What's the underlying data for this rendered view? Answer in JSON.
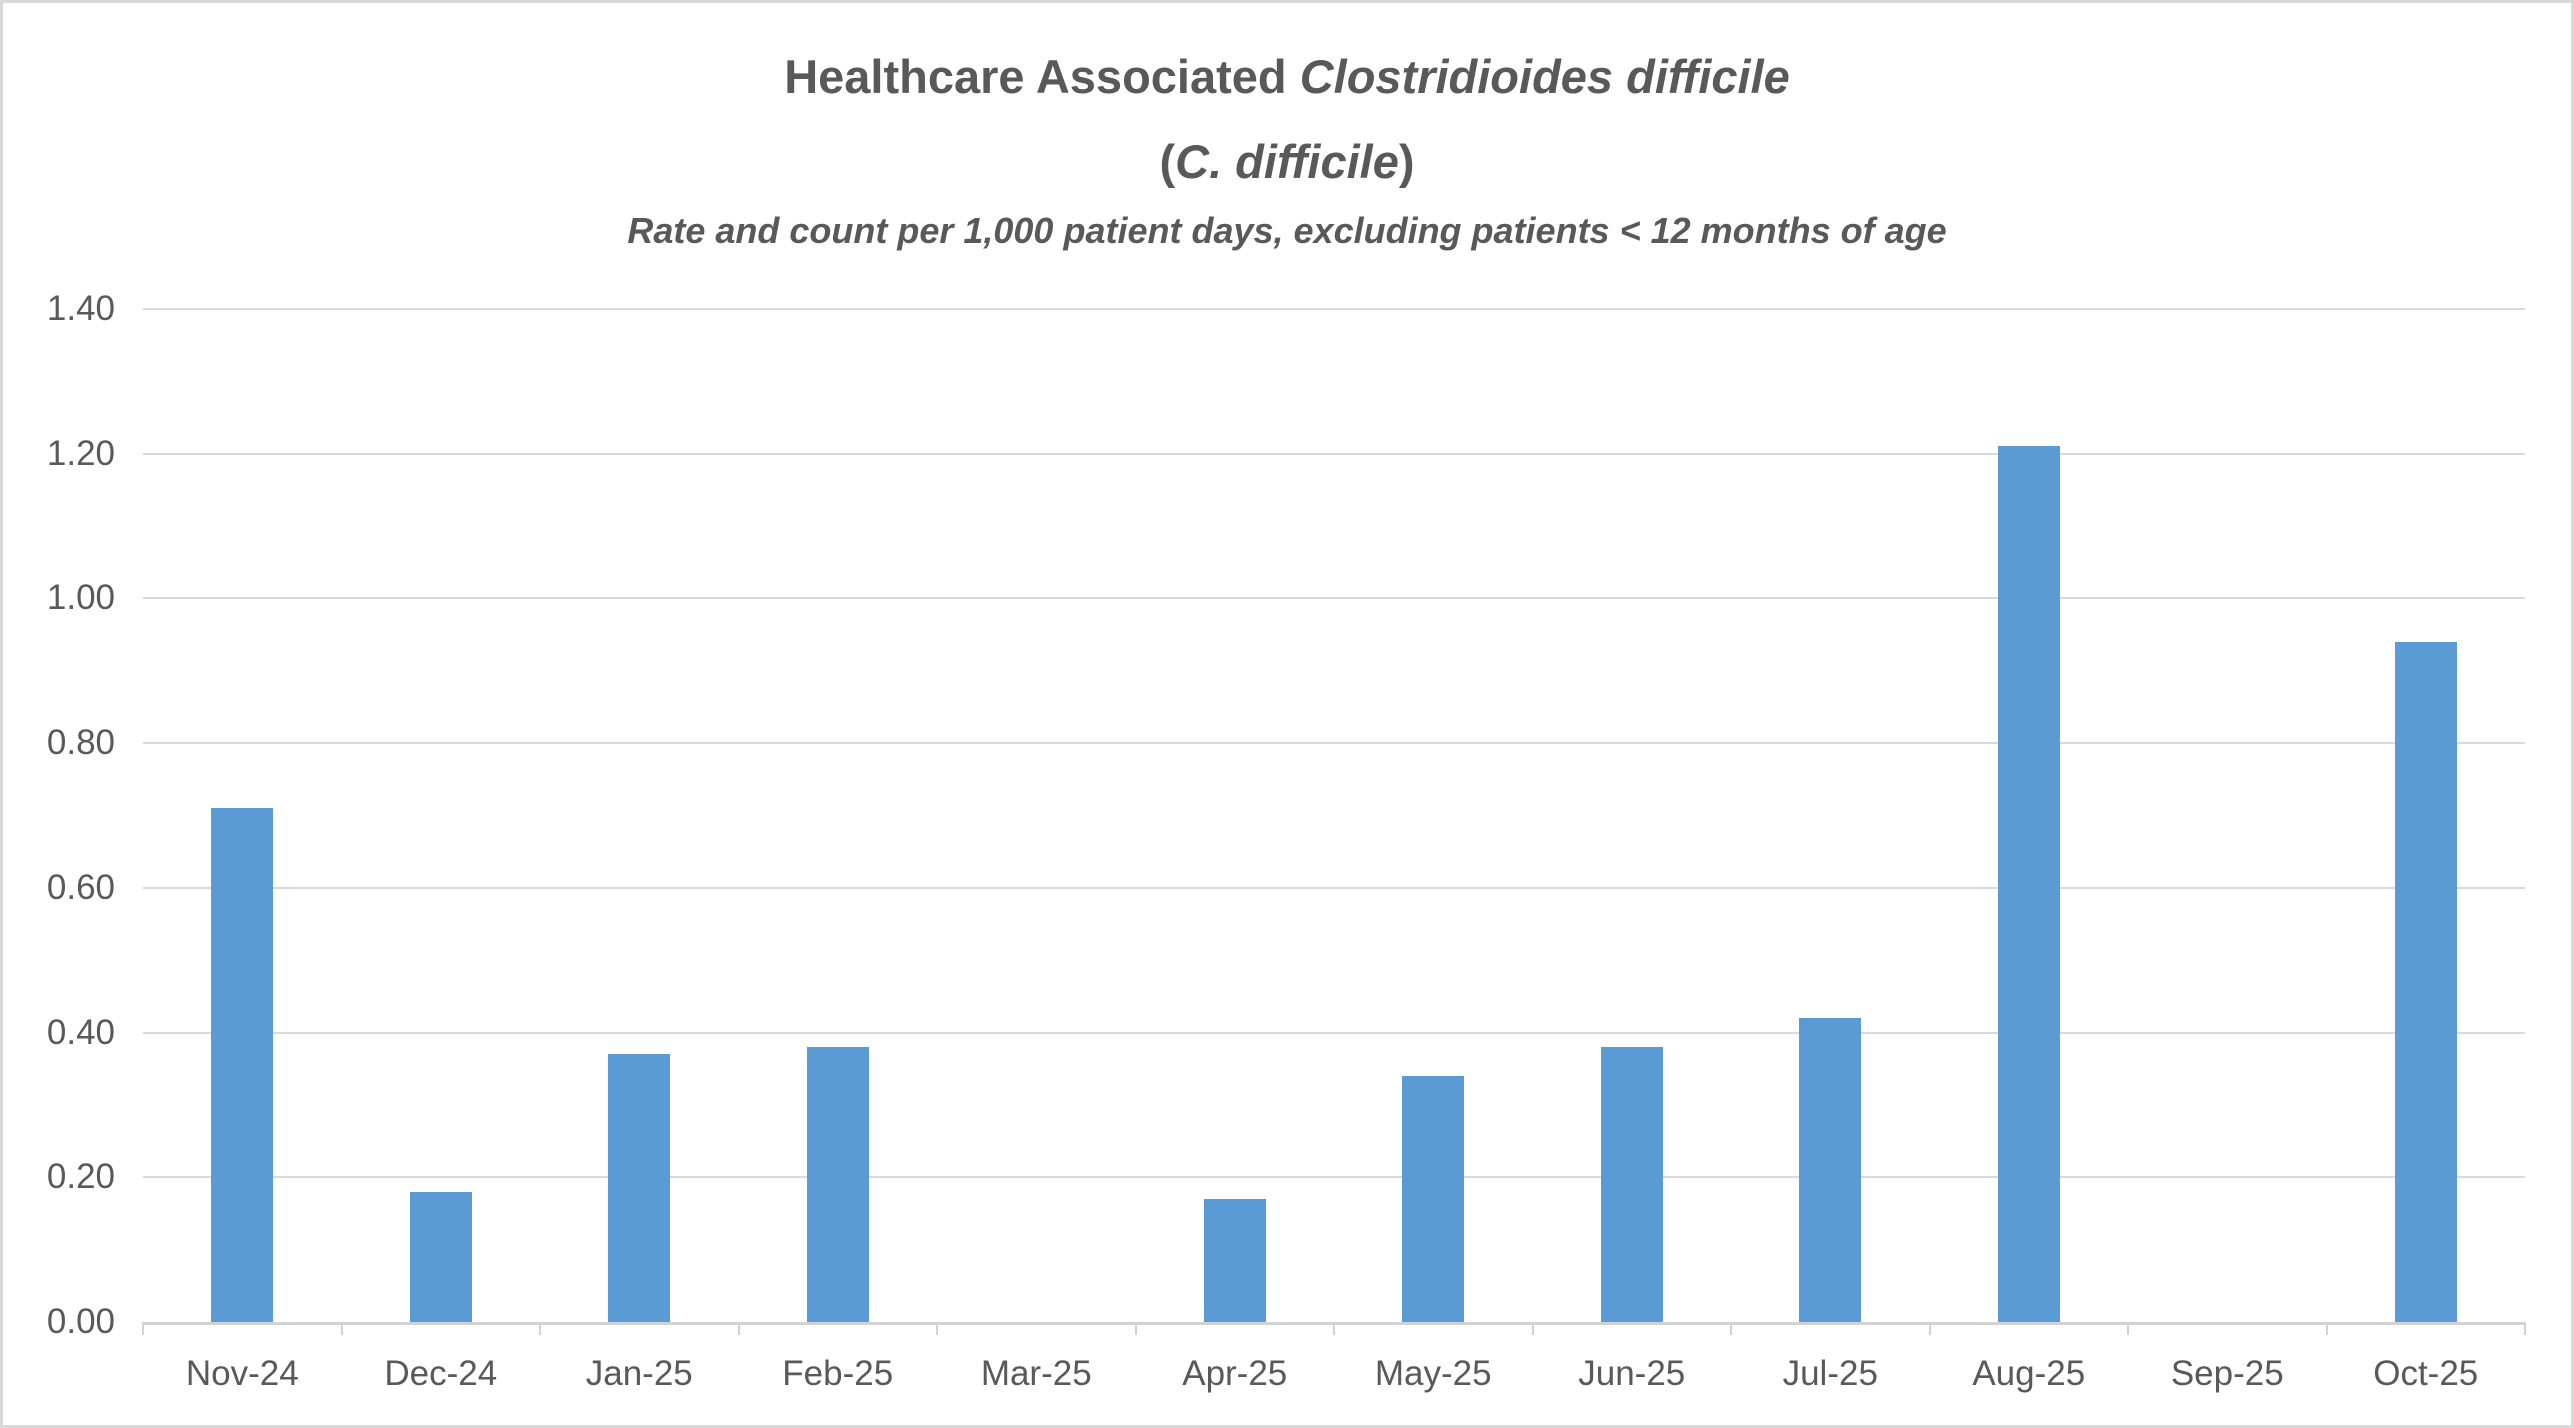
{
  "chart": {
    "title_normal": "Healthcare Associated ",
    "title_italic": "Clostridioides difficile",
    "title2_open": "(",
    "title2_italic": "C. difficile",
    "title2_close": ")",
    "subtitle": "Rate and count per 1,000 patient days, excluding patients < 12 months of age"
  },
  "chart_data": {
    "type": "bar",
    "title": "Healthcare Associated Clostridioides difficile (C. difficile)",
    "subtitle": "Rate and count per 1,000 patient days, excluding patients < 12 months of age",
    "categories": [
      "Nov-24",
      "Dec-24",
      "Jan-25",
      "Feb-25",
      "Mar-25",
      "Apr-25",
      "May-25",
      "Jun-25",
      "Jul-25",
      "Aug-25",
      "Sep-25",
      "Oct-25"
    ],
    "values": [
      0.71,
      0.18,
      0.37,
      0.38,
      0,
      0.17,
      0.34,
      0.38,
      0.42,
      1.21,
      0,
      0.94
    ],
    "xlabel": "",
    "ylabel": "",
    "ylim": [
      0,
      1.4
    ],
    "ytick_step": 0.2,
    "ytick_labels": [
      "0.00",
      "0.20",
      "0.40",
      "0.60",
      "0.80",
      "1.00",
      "1.20",
      "1.40"
    ],
    "grid": true,
    "legend": "none",
    "bar_color": "#5B9BD5",
    "gridline_color": "#D9D9D9",
    "axis_color": "#D2D2D2",
    "text_color": "#595959"
  }
}
